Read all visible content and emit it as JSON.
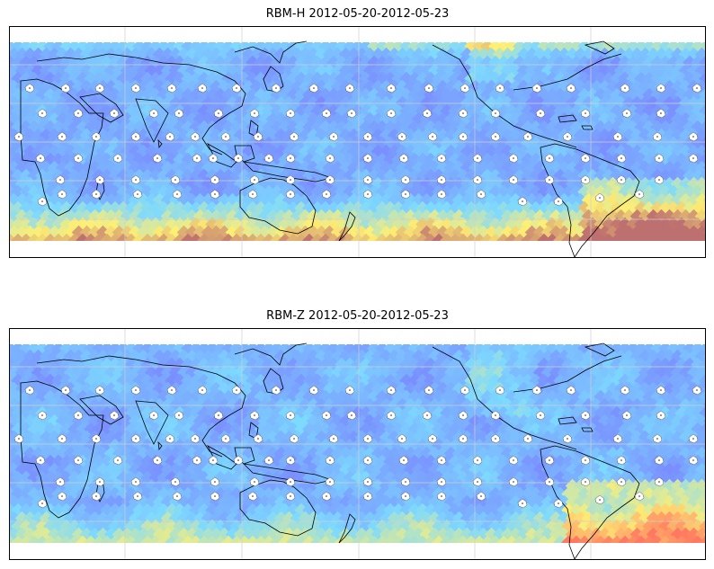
{
  "maps": [
    {
      "id": "rbm-h",
      "title": "RBM-H 2012-05-20-2012-05-23",
      "field": "horizontal",
      "colors": {
        "low": "#6b6bff",
        "mid": "#6fd6ff",
        "high": "#ffee66",
        "max": "#b86060"
      }
    },
    {
      "id": "rbm-z",
      "title": "RBM-Z 2012-05-20-2012-05-23",
      "field": "vertical",
      "colors": {
        "low": "#6b6bff",
        "mid": "#6fd6ff",
        "high": "#ffee66",
        "max": "#ff6a50"
      }
    }
  ],
  "map_style": {
    "coastline_color": "#000000",
    "gridline_color": "#cfcfcf",
    "station_marker_color": "#ffffff",
    "data_alpha": 0.9
  }
}
